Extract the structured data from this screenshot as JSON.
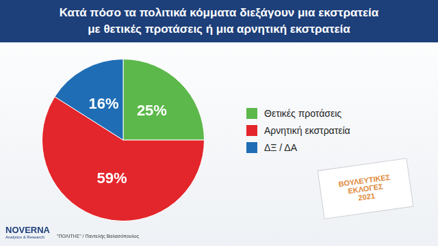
{
  "chart_data": {
    "type": "pie",
    "title": [
      "Κατά πόσο τα πολιτικά κόμματα διεξάγουν μια εκστρατεία",
      "με θετικές προτάσεις ή μια αρνητική εκστρατεία"
    ],
    "categories": [
      "Θετικές προτάσεις",
      "Αρνητική εκστρατεία",
      "ΔΞ / ΔΑ"
    ],
    "values": [
      25,
      59,
      16
    ],
    "value_labels": [
      "25%",
      "59%",
      "16%"
    ],
    "colors": [
      "#5cb84a",
      "#e3262b",
      "#1f6db5"
    ],
    "data_labels": true,
    "legend": "right",
    "annotations": [
      "ΒΟΥΛΕΥΤΙΚΕΣ ΕΚΛΟΓΕΣ",
      "2021",
      "NOVERNA",
      "Analytics & Research",
      "\"ΠΟΛΙΤΗΣ\" / Παντελής Βαλασόπουλος"
    ]
  }
}
